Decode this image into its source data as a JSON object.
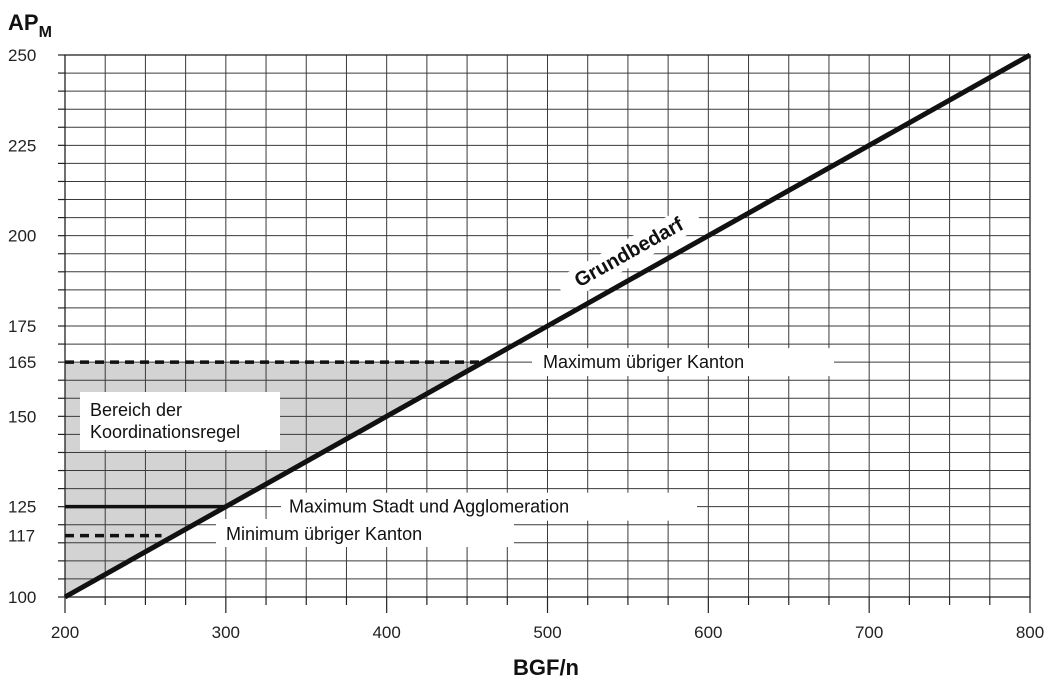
{
  "chart_data": {
    "type": "line",
    "xlabel": "BGF/n",
    "ylabel": "AP",
    "ylabel_sub": "M",
    "xlim": [
      200,
      800
    ],
    "ylim": [
      100,
      250
    ],
    "x_ticks": [
      200,
      300,
      400,
      500,
      600,
      700,
      800
    ],
    "y_ticks": [
      100,
      117,
      125,
      150,
      165,
      175,
      200,
      225,
      250
    ],
    "grid": true,
    "series": [
      {
        "name": "Grundbedarf",
        "x": [
          200,
          800
        ],
        "y": [
          100,
          250
        ],
        "style": "solid-thick"
      }
    ],
    "reference_lines": [
      {
        "label": "Maximum übriger Kanton",
        "y": 165,
        "x_range": [
          200,
          460
        ],
        "style": "dashed"
      },
      {
        "label": "Maximum Stadt und Agglomeration",
        "y": 125,
        "x_range": [
          200,
          300
        ],
        "style": "solid"
      },
      {
        "label": "Minimum übriger Kanton",
        "y": 117,
        "x_range": [
          200,
          260
        ],
        "style": "dashed"
      }
    ],
    "shaded_region": {
      "label_lines": [
        "Bereich der",
        "Koordinationsregel"
      ],
      "polygon": [
        [
          200,
          100
        ],
        [
          200,
          165
        ],
        [
          460,
          165
        ]
      ],
      "color": "#d3d3d3"
    }
  }
}
